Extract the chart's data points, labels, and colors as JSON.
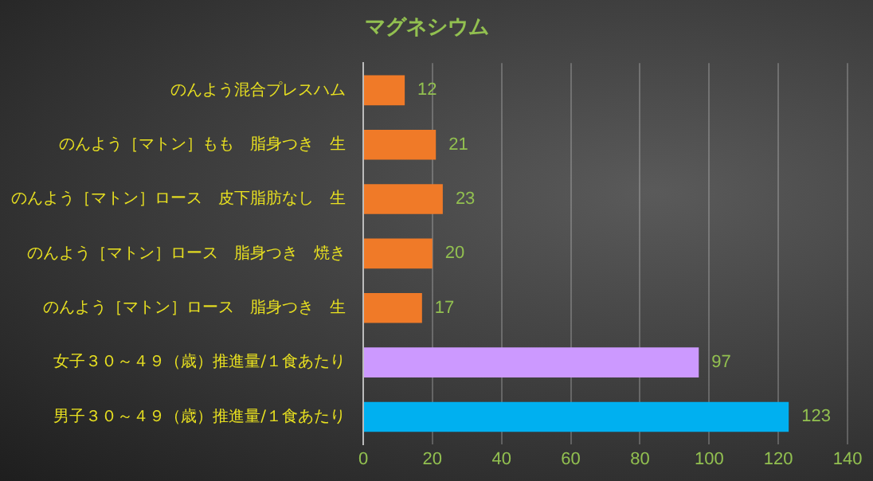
{
  "chart_data": {
    "type": "bar",
    "orientation": "horizontal",
    "title": "マグネシウム",
    "categories": [
      "のんよう混合プレスハム",
      "のんよう［マトン］もも　脂身つき　生",
      "のんよう［マトン］ロース　皮下脂肪なし　生",
      "のんよう［マトン］ロース　脂身つき　焼き",
      "のんよう［マトン］ロース　脂身つき　生",
      "女子３０～４９（歳）推進量/１食あたり",
      "男子３０～４９（歳）推進量/１食あたり"
    ],
    "values": [
      12,
      21,
      23,
      20,
      17,
      97,
      123
    ],
    "colors": [
      "#f07a28",
      "#f07a28",
      "#f07a28",
      "#f07a28",
      "#f07a28",
      "#cc99ff",
      "#00b0f0"
    ],
    "xlim": [
      0,
      140
    ],
    "xticks": [
      0,
      20,
      40,
      60,
      80,
      100,
      120,
      140
    ],
    "grid": "x",
    "legend": false,
    "data_labels": true
  }
}
